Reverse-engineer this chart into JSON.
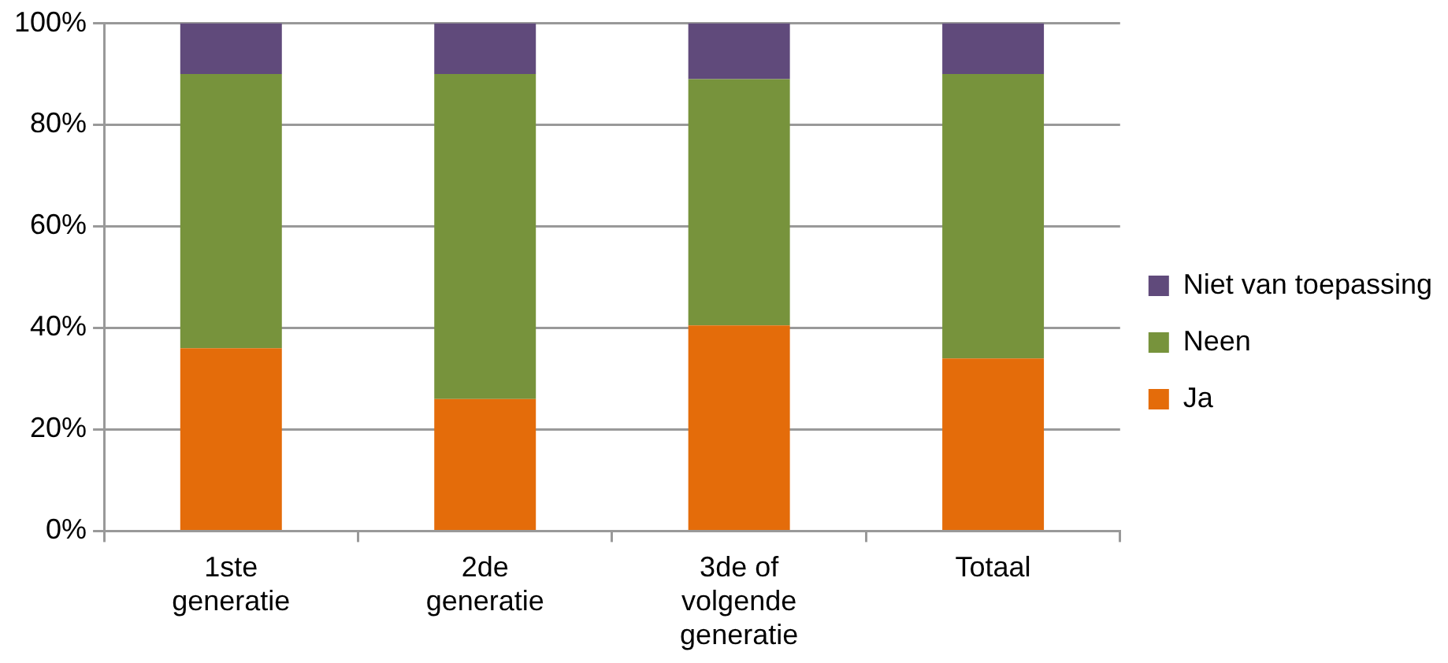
{
  "chart_data": {
    "type": "bar",
    "stacked": true,
    "categories": [
      "1ste generatie",
      "2de generatie",
      "3de of volgende generatie",
      "Totaal"
    ],
    "series": [
      {
        "name": "Ja",
        "color": "#e46c0a",
        "values": [
          36,
          26,
          40.5,
          34
        ]
      },
      {
        "name": "Neen",
        "color": "#77933c",
        "values": [
          54,
          64,
          48.5,
          56
        ]
      },
      {
        "name": "Niet van toepassing",
        "color": "#604a7b",
        "values": [
          10,
          10,
          11,
          10
        ]
      }
    ],
    "ylim": [
      0,
      100
    ],
    "yticks": [
      {
        "value": 0,
        "label": "0%"
      },
      {
        "value": 20,
        "label": "20%"
      },
      {
        "value": 40,
        "label": "40%"
      },
      {
        "value": 60,
        "label": "60%"
      },
      {
        "value": 80,
        "label": "80%"
      },
      {
        "value": 100,
        "label": "100%"
      }
    ],
    "grid": "y",
    "legend": "right"
  }
}
